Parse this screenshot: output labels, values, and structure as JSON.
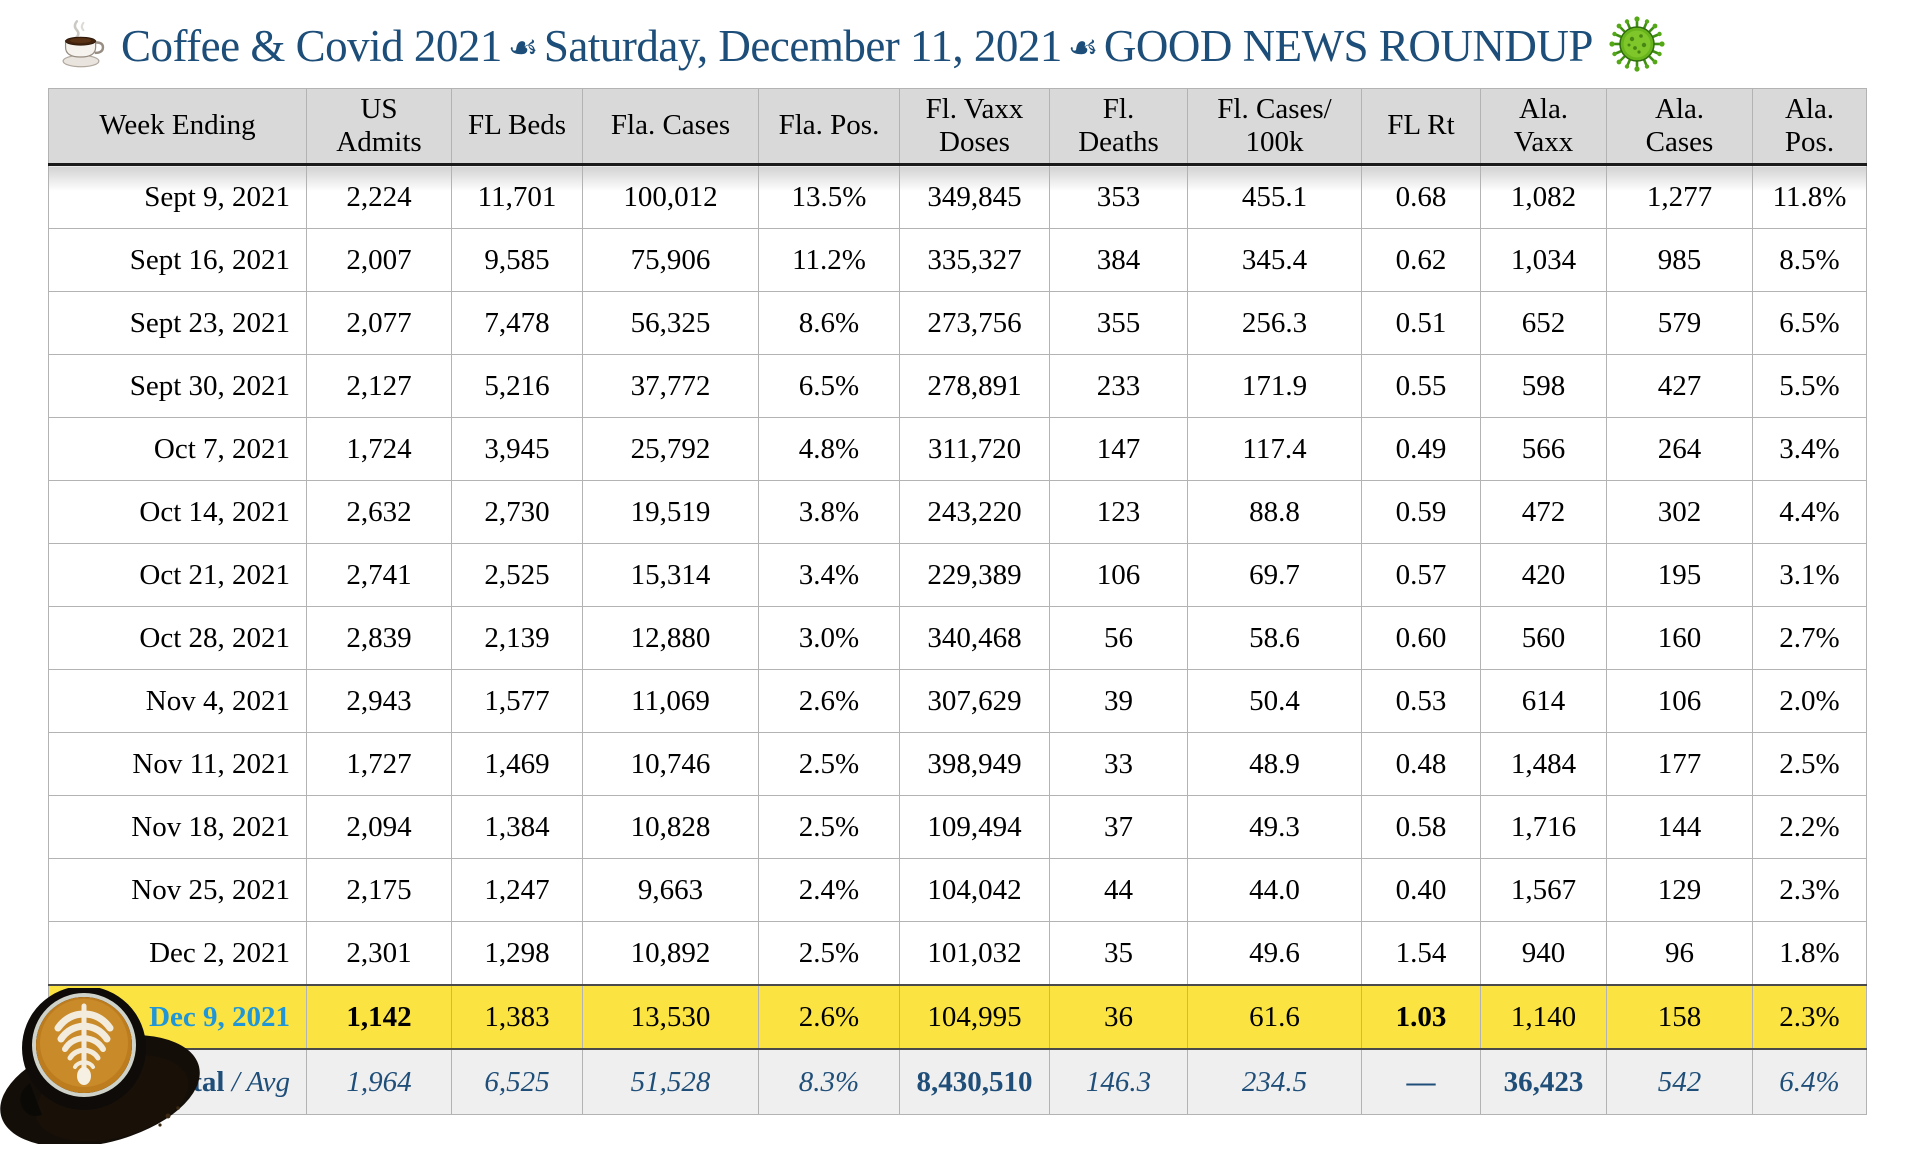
{
  "title": {
    "part1": "Coffee & Covid 2021",
    "separator": "☙",
    "part2": "Saturday, December 11, 2021",
    "part3": "GOOD NEWS ROUNDUP"
  },
  "icons": {
    "coffee_cup": "coffee-cup-photo",
    "virus": "green-coronavirus",
    "latte": "latte-art-cup-photo"
  },
  "colors": {
    "title_blue": "#1C4E79",
    "highlight_yellow": "#FBE441",
    "highlight_date_blue": "#2196D6",
    "header_gray": "#D9D9D9",
    "total_row_gray": "#EFEFEF",
    "total_text_blue": "#1F4E79"
  },
  "table": {
    "columns": [
      "Week Ending",
      "US\nAdmits",
      "FL Beds",
      "Fla. Cases",
      "Fla. Pos.",
      "Fl. Vaxx\nDoses",
      "Fl.\nDeaths",
      "Fl. Cases/\n100k",
      "FL Rt",
      "Ala.\nVaxx",
      "Ala.\nCases",
      "Ala. Pos."
    ],
    "rows": [
      {
        "cells": [
          "Sept 9, 2021",
          "2,224",
          "11,701",
          "100,012",
          "13.5%",
          "349,845",
          "353",
          "455.1",
          "0.68",
          "1,082",
          "1,277",
          "11.8%"
        ]
      },
      {
        "cells": [
          "Sept 16, 2021",
          "2,007",
          "9,585",
          "75,906",
          "11.2%",
          "335,327",
          "384",
          "345.4",
          "0.62",
          "1,034",
          "985",
          "8.5%"
        ]
      },
      {
        "cells": [
          "Sept 23, 2021",
          "2,077",
          "7,478",
          "56,325",
          "8.6%",
          "273,756",
          "355",
          "256.3",
          "0.51",
          "652",
          "579",
          "6.5%"
        ]
      },
      {
        "cells": [
          "Sept 30, 2021",
          "2,127",
          "5,216",
          "37,772",
          "6.5%",
          "278,891",
          "233",
          "171.9",
          "0.55",
          "598",
          "427",
          "5.5%"
        ]
      },
      {
        "cells": [
          "Oct 7, 2021",
          "1,724",
          "3,945",
          "25,792",
          "4.8%",
          "311,720",
          "147",
          "117.4",
          "0.49",
          "566",
          "264",
          "3.4%"
        ]
      },
      {
        "cells": [
          "Oct 14, 2021",
          "2,632",
          "2,730",
          "19,519",
          "3.8%",
          "243,220",
          "123",
          "88.8",
          "0.59",
          "472",
          "302",
          "4.4%"
        ]
      },
      {
        "cells": [
          "Oct 21, 2021",
          "2,741",
          "2,525",
          "15,314",
          "3.4%",
          "229,389",
          "106",
          "69.7",
          "0.57",
          "420",
          "195",
          "3.1%"
        ]
      },
      {
        "cells": [
          "Oct 28, 2021",
          "2,839",
          "2,139",
          "12,880",
          "3.0%",
          "340,468",
          "56",
          "58.6",
          "0.60",
          "560",
          "160",
          "2.7%"
        ]
      },
      {
        "cells": [
          "Nov 4, 2021",
          "2,943",
          "1,577",
          "11,069",
          "2.6%",
          "307,629",
          "39",
          "50.4",
          "0.53",
          "614",
          "106",
          "2.0%"
        ]
      },
      {
        "cells": [
          "Nov 11, 2021",
          "1,727",
          "1,469",
          "10,746",
          "2.5%",
          "398,949",
          "33",
          "48.9",
          "0.48",
          "1,484",
          "177",
          "2.5%"
        ]
      },
      {
        "cells": [
          "Nov 18, 2021",
          "2,094",
          "1,384",
          "10,828",
          "2.5%",
          "109,494",
          "37",
          "49.3",
          "0.58",
          "1,716",
          "144",
          "2.2%"
        ]
      },
      {
        "cells": [
          "Nov 25, 2021",
          "2,175",
          "1,247",
          "9,663",
          "2.4%",
          "104,042",
          "44",
          "44.0",
          "0.40",
          "1,567",
          "129",
          "2.3%"
        ]
      },
      {
        "cells": [
          "Dec 2, 2021",
          "2,301",
          "1,298",
          "10,892",
          "2.5%",
          "101,032",
          "35",
          "49.6",
          "1.54",
          "940",
          "96",
          "1.8%"
        ]
      },
      {
        "cells": [
          "Dec 9, 2021",
          "1,142",
          "1,383",
          "13,530",
          "2.6%",
          "104,995",
          "36",
          "61.6",
          "1.03",
          "1,140",
          "158",
          "2.3%"
        ],
        "highlight": true,
        "bold": [
          1,
          8
        ]
      }
    ],
    "total": {
      "label_bold": "Total",
      "label_italic": " / Avg",
      "values": [
        "1,964",
        "6,525",
        "51,528",
        "8.3%",
        "8,430,510",
        "146.3",
        "234.5",
        "—",
        "36,423",
        "542",
        "6.4%"
      ]
    }
  }
}
